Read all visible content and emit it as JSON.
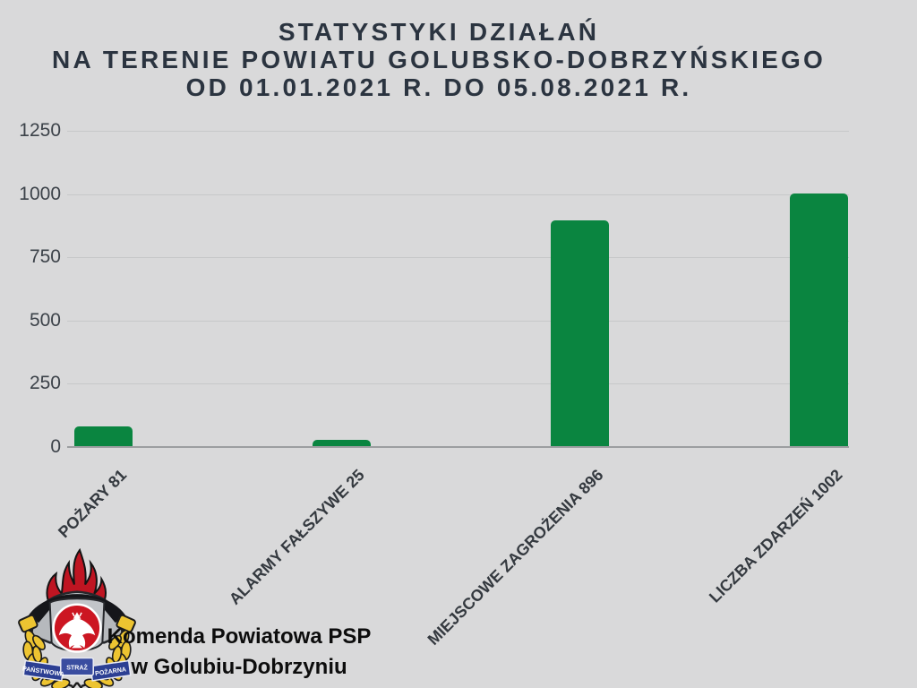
{
  "page": {
    "background": "#d9d9da"
  },
  "title": {
    "line1": "STATYSTYKI DZIAŁAŃ",
    "line2": "NA TERENIE POWIATU GOLUBSKO-DOBRZYŃSKIEGO",
    "line3": "OD 01.01.2021 R. DO 05.08.2021 R."
  },
  "chart_data": {
    "type": "bar",
    "categories": [
      "POŻARY 81",
      "ALARMY FAŁSZYWE 25",
      "MIEJSCOWE ZAGROŻENIA 896",
      "LICZBA ZDARZEŃ 1002"
    ],
    "values": [
      81,
      25,
      896,
      1002
    ],
    "y_ticks": [
      0,
      250,
      500,
      750,
      1000,
      1250
    ],
    "ylim": [
      0,
      1250
    ],
    "title": "",
    "xlabel": "",
    "ylabel": "",
    "grid": true,
    "legend": false,
    "bar_color": "#0a8540",
    "grid_color": "#c7c8c9",
    "axis_color": "#9c9ea0",
    "tick_label_color": "#3c4249",
    "category_label_rotation_deg": -45
  },
  "footer": {
    "line1": "Komenda Powiatowa PSP",
    "line2": "w Golubiu-Dobrzyniu",
    "logo": {
      "name": "panstwowa-straz-pozarna-emblem",
      "ribbon_left": "PAŃSTWOWA",
      "ribbon_center": "STRAŻ",
      "ribbon_right": "POŻARNA",
      "flame_color": "#bf1522",
      "helmet_color": "#b6b9bd",
      "gold_color": "#edc431",
      "ribbon_color": "#2c3f93",
      "badge_color": "#cc1622"
    }
  }
}
